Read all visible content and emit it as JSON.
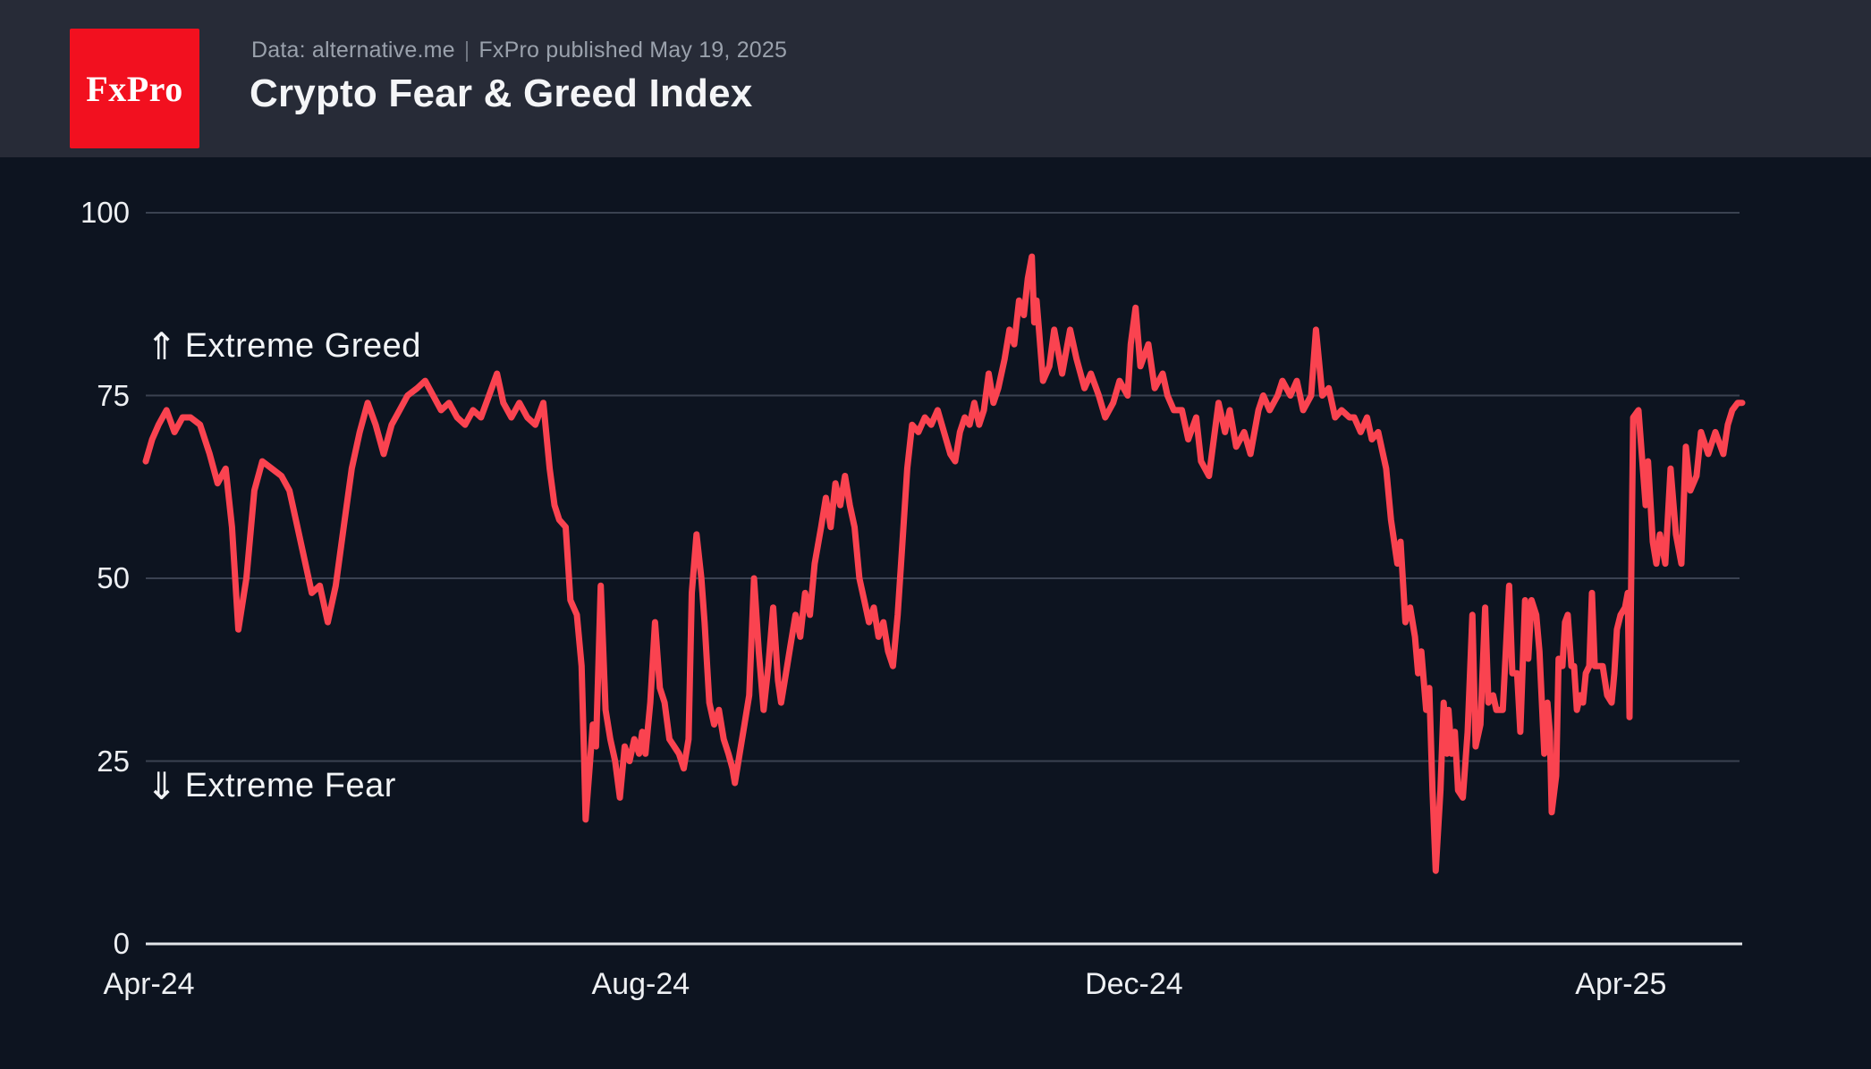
{
  "header": {
    "logo_text": "FxPro",
    "source_text": "Data: alternative.me",
    "divider": "|",
    "published_text": "FxPro published May 19, 2025",
    "title": "Crypto Fear & Greed Index"
  },
  "annotations": {
    "greed_arrow": "⇑",
    "greed_label": "Extreme Greed",
    "fear_arrow": "⇓",
    "fear_label": "Extreme Fear"
  },
  "colors": {
    "page_background": "#0d1420",
    "header_background": "#272b37",
    "logo_red": "#f2101f",
    "line_red": "#fa4350",
    "gridline": "#3a4251",
    "axis_line": "#e2e5e9",
    "text_primary": "#f4f5f7",
    "text_secondary": "#9aa1ac"
  },
  "chart_data": {
    "type": "line",
    "title": "Crypto Fear & Greed Index",
    "series_name": "Crypto Fear & Greed Index (daily)",
    "ylim": [
      0,
      100
    ],
    "y_ticks": [
      100,
      75,
      50,
      25,
      0
    ],
    "x_ticks": [
      {
        "label": "Apr-24",
        "pos": 0.002
      },
      {
        "label": "Aug-24",
        "pos": 0.31
      },
      {
        "label": "Dec-24",
        "pos": 0.619
      },
      {
        "label": "Apr-25",
        "pos": 0.924
      }
    ],
    "grid": "horizontal gridlines at 25/50/75/100, solid baseline at 0",
    "legend": "none",
    "line_color": "#fa4350",
    "points": [
      [
        0,
        66
      ],
      [
        0.004,
        69
      ],
      [
        0.008,
        71
      ],
      [
        0.013,
        73
      ],
      [
        0.018,
        70
      ],
      [
        0.023,
        72
      ],
      [
        0.028,
        72
      ],
      [
        0.034,
        71
      ],
      [
        0.04,
        67
      ],
      [
        0.045,
        63
      ],
      [
        0.05,
        65
      ],
      [
        0.054,
        57
      ],
      [
        0.058,
        43
      ],
      [
        0.063,
        50
      ],
      [
        0.068,
        62
      ],
      [
        0.073,
        66
      ],
      [
        0.079,
        65
      ],
      [
        0.085,
        64
      ],
      [
        0.09,
        62
      ],
      [
        0.095,
        57
      ],
      [
        0.1,
        52
      ],
      [
        0.104,
        48
      ],
      [
        0.109,
        49
      ],
      [
        0.114,
        44
      ],
      [
        0.119,
        49
      ],
      [
        0.124,
        57
      ],
      [
        0.129,
        65
      ],
      [
        0.134,
        70
      ],
      [
        0.139,
        74
      ],
      [
        0.144,
        71
      ],
      [
        0.149,
        67
      ],
      [
        0.154,
        71
      ],
      [
        0.159,
        73
      ],
      [
        0.164,
        75
      ],
      [
        0.17,
        76
      ],
      [
        0.175,
        77
      ],
      [
        0.18,
        75
      ],
      [
        0.185,
        73
      ],
      [
        0.19,
        74
      ],
      [
        0.195,
        72
      ],
      [
        0.2,
        71
      ],
      [
        0.205,
        73
      ],
      [
        0.21,
        72
      ],
      [
        0.215,
        75
      ],
      [
        0.22,
        78
      ],
      [
        0.224,
        74
      ],
      [
        0.229,
        72
      ],
      [
        0.234,
        74
      ],
      [
        0.239,
        72
      ],
      [
        0.244,
        71
      ],
      [
        0.249,
        74
      ],
      [
        0.253,
        65
      ],
      [
        0.256,
        60
      ],
      [
        0.259,
        58
      ],
      [
        0.263,
        57
      ],
      [
        0.266,
        47
      ],
      [
        0.27,
        45
      ],
      [
        0.273,
        38
      ],
      [
        0.2745,
        26
      ],
      [
        0.2755,
        17
      ],
      [
        0.278,
        24
      ],
      [
        0.28,
        30
      ],
      [
        0.282,
        27
      ],
      [
        0.285,
        49
      ],
      [
        0.288,
        32
      ],
      [
        0.291,
        28
      ],
      [
        0.294,
        25
      ],
      [
        0.297,
        20
      ],
      [
        0.3,
        27
      ],
      [
        0.303,
        25
      ],
      [
        0.306,
        28
      ],
      [
        0.309,
        26
      ],
      [
        0.311,
        29
      ],
      [
        0.313,
        26
      ],
      [
        0.316,
        33
      ],
      [
        0.319,
        44
      ],
      [
        0.322,
        35
      ],
      [
        0.325,
        33
      ],
      [
        0.328,
        28
      ],
      [
        0.331,
        27
      ],
      [
        0.334,
        26
      ],
      [
        0.337,
        24
      ],
      [
        0.34,
        28
      ],
      [
        0.342,
        48
      ],
      [
        0.345,
        56
      ],
      [
        0.348,
        50
      ],
      [
        0.35,
        44
      ],
      [
        0.353,
        33
      ],
      [
        0.356,
        30
      ],
      [
        0.359,
        32
      ],
      [
        0.362,
        28
      ],
      [
        0.365,
        26
      ],
      [
        0.3675,
        24
      ],
      [
        0.369,
        22
      ],
      [
        0.372,
        26
      ],
      [
        0.375,
        30
      ],
      [
        0.378,
        34
      ],
      [
        0.381,
        50
      ],
      [
        0.384,
        40
      ],
      [
        0.387,
        32
      ],
      [
        0.39,
        38
      ],
      [
        0.393,
        46
      ],
      [
        0.396,
        36
      ],
      [
        0.398,
        33
      ],
      [
        0.401,
        37
      ],
      [
        0.404,
        41
      ],
      [
        0.407,
        45
      ],
      [
        0.41,
        42
      ],
      [
        0.413,
        48
      ],
      [
        0.416,
        45
      ],
      [
        0.419,
        52
      ],
      [
        0.423,
        57
      ],
      [
        0.426,
        61
      ],
      [
        0.429,
        57
      ],
      [
        0.432,
        63
      ],
      [
        0.435,
        60
      ],
      [
        0.438,
        64
      ],
      [
        0.441,
        60
      ],
      [
        0.444,
        57
      ],
      [
        0.447,
        50
      ],
      [
        0.45,
        47
      ],
      [
        0.453,
        44
      ],
      [
        0.456,
        46
      ],
      [
        0.459,
        42
      ],
      [
        0.462,
        44
      ],
      [
        0.465,
        40
      ],
      [
        0.468,
        38
      ],
      [
        0.471,
        45
      ],
      [
        0.474,
        55
      ],
      [
        0.477,
        65
      ],
      [
        0.48,
        71
      ],
      [
        0.484,
        70
      ],
      [
        0.488,
        72
      ],
      [
        0.492,
        71
      ],
      [
        0.496,
        73
      ],
      [
        0.5,
        70
      ],
      [
        0.504,
        67
      ],
      [
        0.507,
        66
      ],
      [
        0.51,
        70
      ],
      [
        0.513,
        72
      ],
      [
        0.516,
        71
      ],
      [
        0.519,
        74
      ],
      [
        0.522,
        71
      ],
      [
        0.525,
        73
      ],
      [
        0.528,
        78
      ],
      [
        0.531,
        74
      ],
      [
        0.534,
        76
      ],
      [
        0.538,
        80
      ],
      [
        0.541,
        84
      ],
      [
        0.544,
        82
      ],
      [
        0.547,
        88
      ],
      [
        0.55,
        86
      ],
      [
        0.5525,
        91
      ],
      [
        0.555,
        94
      ],
      [
        0.5565,
        85
      ],
      [
        0.558,
        88
      ],
      [
        0.5595,
        84
      ],
      [
        0.562,
        77
      ],
      [
        0.566,
        79
      ],
      [
        0.569,
        84
      ],
      [
        0.574,
        78
      ],
      [
        0.579,
        84
      ],
      [
        0.583,
        80
      ],
      [
        0.588,
        76
      ],
      [
        0.592,
        78
      ],
      [
        0.597,
        75
      ],
      [
        0.601,
        72
      ],
      [
        0.606,
        74
      ],
      [
        0.61,
        77
      ],
      [
        0.615,
        75
      ],
      [
        0.617,
        82
      ],
      [
        0.62,
        87
      ],
      [
        0.623,
        79
      ],
      [
        0.628,
        82
      ],
      [
        0.632,
        76
      ],
      [
        0.637,
        78
      ],
      [
        0.64,
        75
      ],
      [
        0.644,
        73
      ],
      [
        0.649,
        73
      ],
      [
        0.653,
        69
      ],
      [
        0.658,
        72
      ],
      [
        0.661,
        66
      ],
      [
        0.666,
        64
      ],
      [
        0.672,
        74
      ],
      [
        0.676,
        70
      ],
      [
        0.679,
        73
      ],
      [
        0.683,
        68
      ],
      [
        0.688,
        70
      ],
      [
        0.692,
        67
      ],
      [
        0.697,
        73
      ],
      [
        0.7,
        75
      ],
      [
        0.704,
        73
      ],
      [
        0.709,
        75
      ],
      [
        0.712,
        77
      ],
      [
        0.717,
        75
      ],
      [
        0.721,
        77
      ],
      [
        0.725,
        73
      ],
      [
        0.73,
        75
      ],
      [
        0.733,
        84
      ],
      [
        0.737,
        75
      ],
      [
        0.741,
        76
      ],
      [
        0.745,
        72
      ],
      [
        0.749,
        73
      ],
      [
        0.754,
        72
      ],
      [
        0.757,
        72
      ],
      [
        0.761,
        70
      ],
      [
        0.765,
        72
      ],
      [
        0.768,
        69
      ],
      [
        0.772,
        70
      ],
      [
        0.777,
        65
      ],
      [
        0.78,
        58
      ],
      [
        0.784,
        52
      ],
      [
        0.786,
        55
      ],
      [
        0.789,
        44
      ],
      [
        0.792,
        46
      ],
      [
        0.795,
        42
      ],
      [
        0.797,
        37
      ],
      [
        0.799,
        40
      ],
      [
        0.802,
        32
      ],
      [
        0.804,
        35
      ],
      [
        0.806,
        21
      ],
      [
        0.808,
        10
      ],
      [
        0.811,
        21
      ],
      [
        0.813,
        33
      ],
      [
        0.815,
        26
      ],
      [
        0.816,
        32
      ],
      [
        0.818,
        26
      ],
      [
        0.82,
        29
      ],
      [
        0.822,
        21
      ],
      [
        0.825,
        20
      ],
      [
        0.828,
        29
      ],
      [
        0.831,
        45
      ],
      [
        0.833,
        27
      ],
      [
        0.836,
        30
      ],
      [
        0.839,
        46
      ],
      [
        0.841,
        33
      ],
      [
        0.844,
        34
      ],
      [
        0.846,
        32
      ],
      [
        0.85,
        32
      ],
      [
        0.854,
        49
      ],
      [
        0.856,
        37
      ],
      [
        0.859,
        37
      ],
      [
        0.861,
        29
      ],
      [
        0.864,
        47
      ],
      [
        0.866,
        39
      ],
      [
        0.868,
        47
      ],
      [
        0.871,
        45
      ],
      [
        0.873,
        40
      ],
      [
        0.876,
        26
      ],
      [
        0.878,
        33
      ],
      [
        0.8795,
        29
      ],
      [
        0.8807,
        18
      ],
      [
        0.8835,
        23
      ],
      [
        0.885,
        39
      ],
      [
        0.8874,
        38
      ],
      [
        0.889,
        44
      ],
      [
        0.8907,
        45
      ],
      [
        0.893,
        38
      ],
      [
        0.8947,
        38
      ],
      [
        0.8964,
        32
      ],
      [
        0.8986,
        34
      ],
      [
        0.9003,
        33
      ],
      [
        0.902,
        37
      ],
      [
        0.9042,
        38
      ],
      [
        0.9059,
        48
      ],
      [
        0.9076,
        38
      ],
      [
        0.9098,
        38
      ],
      [
        0.9126,
        38
      ],
      [
        0.9154,
        34
      ],
      [
        0.9182,
        33
      ],
      [
        0.9199,
        37
      ],
      [
        0.9215,
        43
      ],
      [
        0.9238,
        45
      ],
      [
        0.9266,
        46
      ],
      [
        0.9283,
        48
      ],
      [
        0.9294,
        31
      ],
      [
        0.9317,
        72
      ],
      [
        0.935,
        73
      ],
      [
        0.9395,
        60
      ],
      [
        0.941,
        66
      ],
      [
        0.944,
        55
      ],
      [
        0.9462,
        52
      ],
      [
        0.9484,
        56
      ],
      [
        0.9518,
        52
      ],
      [
        0.9551,
        65
      ],
      [
        0.9585,
        56
      ],
      [
        0.9619,
        52
      ],
      [
        0.9647,
        68
      ],
      [
        0.9675,
        62
      ],
      [
        0.9714,
        64
      ],
      [
        0.9742,
        70
      ],
      [
        0.9787,
        67
      ],
      [
        0.9832,
        70
      ],
      [
        0.9882,
        67
      ],
      [
        0.991,
        71
      ],
      [
        0.9938,
        73
      ],
      [
        0.9972,
        74
      ],
      [
        1,
        74
      ]
    ]
  }
}
